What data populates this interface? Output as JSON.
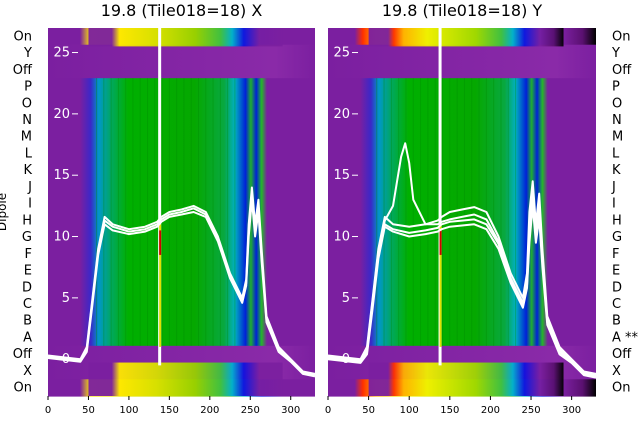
{
  "chart_data": {
    "type": "heatmap",
    "x_ticks": [
      0,
      50,
      100,
      150,
      200,
      250,
      300
    ],
    "xlim": [
      0,
      330
    ],
    "row_labels": [
      "On",
      "Y",
      "Off",
      "P",
      "O",
      "N",
      "M",
      "L",
      "K",
      "J",
      "I",
      "H",
      "G",
      "F",
      "E",
      "D",
      "C",
      "B",
      "A",
      "Off",
      "X",
      "On"
    ],
    "ylabel": "Dipole",
    "overlay_ticks": [
      0,
      5,
      10,
      15,
      20,
      25
    ],
    "overlay_ylim": [
      -3,
      27
    ],
    "panels": [
      {
        "title": "19.8 (Tile018=18) X",
        "row_labels_right": [],
        "spike_x": 138,
        "traces": [
          [
            [
              0,
              0.3
            ],
            [
              40,
              0.0
            ],
            [
              48,
              1.0
            ],
            [
              55,
              5.0
            ],
            [
              62,
              9.0
            ],
            [
              70,
              11.6
            ],
            [
              80,
              11.0
            ],
            [
              100,
              10.6
            ],
            [
              120,
              10.8
            ],
            [
              135,
              11.2
            ],
            [
              140,
              11.6
            ],
            [
              150,
              12.0
            ],
            [
              165,
              12.2
            ],
            [
              180,
              12.5
            ],
            [
              195,
              12.0
            ],
            [
              210,
              10.0
            ],
            [
              225,
              7.0
            ],
            [
              240,
              5.0
            ],
            [
              245,
              6.5
            ],
            [
              248,
              11.0
            ],
            [
              252,
              14.0
            ],
            [
              256,
              11.0
            ],
            [
              260,
              13.0
            ],
            [
              264,
              9.0
            ],
            [
              270,
              3.5
            ],
            [
              285,
              1.0
            ],
            [
              300,
              0.0
            ],
            [
              315,
              -1.0
            ],
            [
              330,
              -1.2
            ]
          ],
          [
            [
              0,
              0.2
            ],
            [
              40,
              -0.1
            ],
            [
              48,
              0.8
            ],
            [
              55,
              4.8
            ],
            [
              62,
              8.8
            ],
            [
              70,
              11.3
            ],
            [
              80,
              10.8
            ],
            [
              100,
              10.4
            ],
            [
              120,
              10.6
            ],
            [
              135,
              11.0
            ],
            [
              140,
              11.4
            ],
            [
              150,
              11.8
            ],
            [
              165,
              12.0
            ],
            [
              180,
              12.3
            ],
            [
              195,
              11.8
            ],
            [
              210,
              9.8
            ],
            [
              225,
              6.8
            ],
            [
              240,
              4.8
            ],
            [
              245,
              6.2
            ],
            [
              248,
              10.5
            ],
            [
              252,
              13.5
            ],
            [
              256,
              10.5
            ],
            [
              260,
              12.5
            ],
            [
              264,
              8.5
            ],
            [
              270,
              3.2
            ],
            [
              285,
              0.8
            ],
            [
              300,
              -0.1
            ],
            [
              315,
              -1.1
            ],
            [
              330,
              -1.3
            ]
          ],
          [
            [
              0,
              0.1
            ],
            [
              40,
              -0.2
            ],
            [
              48,
              0.6
            ],
            [
              55,
              4.5
            ],
            [
              62,
              8.5
            ],
            [
              70,
              11.0
            ],
            [
              80,
              10.5
            ],
            [
              100,
              10.2
            ],
            [
              120,
              10.4
            ],
            [
              135,
              10.8
            ],
            [
              140,
              11.2
            ],
            [
              150,
              11.6
            ],
            [
              165,
              11.8
            ],
            [
              180,
              12.0
            ],
            [
              195,
              11.6
            ],
            [
              210,
              9.6
            ],
            [
              225,
              6.6
            ],
            [
              240,
              4.6
            ],
            [
              245,
              6.0
            ],
            [
              248,
              10.0
            ],
            [
              252,
              13.0
            ],
            [
              256,
              10.0
            ],
            [
              260,
              12.0
            ],
            [
              264,
              8.0
            ],
            [
              270,
              3.0
            ],
            [
              285,
              0.6
            ],
            [
              300,
              -0.2
            ],
            [
              315,
              -1.2
            ],
            [
              330,
              -1.4
            ]
          ]
        ]
      },
      {
        "title": "19.8 (Tile018=18) Y",
        "row_labels_right": [
          "On",
          "Y",
          "Off",
          "P",
          "O",
          "N",
          "M",
          "L",
          "K",
          "J",
          "I",
          "H",
          "G",
          "F",
          "E",
          "D",
          "C",
          "B",
          "A **",
          "Off",
          "X",
          "On"
        ],
        "spike_x": 138,
        "traces": [
          [
            [
              0,
              0.3
            ],
            [
              40,
              0.0
            ],
            [
              48,
              1.0
            ],
            [
              55,
              5.0
            ],
            [
              62,
              9.0
            ],
            [
              70,
              11.6
            ],
            [
              80,
              11.0
            ],
            [
              100,
              10.8
            ],
            [
              120,
              11.0
            ],
            [
              135,
              11.3
            ],
            [
              140,
              11.6
            ],
            [
              150,
              12.0
            ],
            [
              165,
              12.2
            ],
            [
              180,
              12.4
            ],
            [
              195,
              12.0
            ],
            [
              210,
              10.0
            ],
            [
              225,
              7.0
            ],
            [
              240,
              5.0
            ],
            [
              245,
              7.0
            ],
            [
              248,
              12.0
            ],
            [
              252,
              14.5
            ],
            [
              256,
              11.0
            ],
            [
              260,
              13.5
            ],
            [
              264,
              9.0
            ],
            [
              270,
              3.5
            ],
            [
              285,
              1.0
            ],
            [
              300,
              0.0
            ],
            [
              315,
              -1.0
            ],
            [
              330,
              -1.2
            ]
          ],
          [
            [
              0,
              0.2
            ],
            [
              40,
              -0.1
            ],
            [
              48,
              0.8
            ],
            [
              55,
              4.8
            ],
            [
              62,
              8.8
            ],
            [
              70,
              11.3
            ],
            [
              80,
              12.5
            ],
            [
              90,
              16.5
            ],
            [
              95,
              17.6
            ],
            [
              100,
              16.0
            ],
            [
              105,
              13.0
            ],
            [
              120,
              11.0
            ],
            [
              135,
              11.0
            ],
            [
              140,
              11.2
            ],
            [
              150,
              11.4
            ],
            [
              165,
              11.6
            ],
            [
              180,
              11.8
            ],
            [
              195,
              11.4
            ],
            [
              210,
              9.6
            ],
            [
              225,
              6.6
            ],
            [
              240,
              4.6
            ],
            [
              245,
              6.5
            ],
            [
              248,
              11.0
            ],
            [
              252,
              13.5
            ],
            [
              256,
              10.5
            ],
            [
              260,
              12.5
            ],
            [
              264,
              8.5
            ],
            [
              270,
              3.2
            ],
            [
              285,
              0.8
            ],
            [
              300,
              -0.1
            ],
            [
              315,
              -1.1
            ],
            [
              330,
              -1.3
            ]
          ],
          [
            [
              0,
              0.1
            ],
            [
              40,
              -0.2
            ],
            [
              48,
              0.6
            ],
            [
              55,
              4.5
            ],
            [
              62,
              8.5
            ],
            [
              70,
              11.0
            ],
            [
              80,
              10.6
            ],
            [
              100,
              10.3
            ],
            [
              120,
              10.5
            ],
            [
              135,
              10.7
            ],
            [
              140,
              11.0
            ],
            [
              150,
              11.2
            ],
            [
              165,
              11.3
            ],
            [
              180,
              11.4
            ],
            [
              195,
              11.0
            ],
            [
              210,
              9.4
            ],
            [
              225,
              6.4
            ],
            [
              240,
              4.4
            ],
            [
              245,
              6.0
            ],
            [
              248,
              10.0
            ],
            [
              252,
              13.0
            ],
            [
              256,
              10.0
            ],
            [
              260,
              12.0
            ],
            [
              264,
              8.0
            ],
            [
              270,
              3.0
            ],
            [
              285,
              0.6
            ],
            [
              300,
              -0.2
            ],
            [
              315,
              -1.2
            ],
            [
              330,
              -1.4
            ]
          ],
          [
            [
              0,
              0.0
            ],
            [
              40,
              -0.3
            ],
            [
              48,
              0.4
            ],
            [
              55,
              4.2
            ],
            [
              62,
              8.2
            ],
            [
              70,
              10.8
            ],
            [
              80,
              10.4
            ],
            [
              100,
              10.0
            ],
            [
              120,
              10.2
            ],
            [
              135,
              10.4
            ],
            [
              140,
              10.6
            ],
            [
              150,
              10.8
            ],
            [
              165,
              10.9
            ],
            [
              180,
              11.0
            ],
            [
              195,
              10.6
            ],
            [
              210,
              9.0
            ],
            [
              225,
              6.2
            ],
            [
              240,
              4.2
            ],
            [
              245,
              5.8
            ],
            [
              248,
              9.5
            ],
            [
              252,
              12.5
            ],
            [
              256,
              9.5
            ],
            [
              260,
              11.5
            ],
            [
              264,
              7.5
            ],
            [
              270,
              2.8
            ],
            [
              285,
              0.4
            ],
            [
              300,
              -0.3
            ],
            [
              315,
              -1.3
            ],
            [
              330,
              -1.5
            ]
          ]
        ]
      }
    ]
  }
}
